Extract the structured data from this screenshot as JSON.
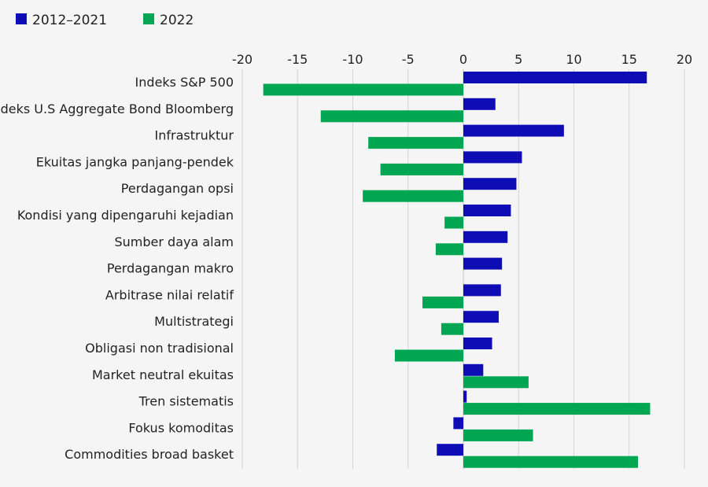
{
  "chart_data": {
    "type": "bar",
    "orientation": "horizontal",
    "categories": [
      "Indeks S&P 500",
      "Indeks U.S Aggregate Bond Bloomberg",
      "Infrastruktur",
      "Ekuitas jangka panjang-pendek",
      "Perdagangan opsi",
      "Kondisi yang dipengaruhi kejadian",
      "Sumber daya alam",
      "Perdagangan makro",
      "Arbitrase nilai relatif",
      "Multistrategi",
      "Obligasi non tradisional",
      "Market neutral ekuitas",
      "Tren sistematis",
      "Fokus komoditas",
      "Commodities broad basket"
    ],
    "series": [
      {
        "name": "2012–2021",
        "color": "#0d0cb5",
        "values": [
          16.6,
          2.9,
          9.1,
          5.3,
          4.8,
          4.3,
          4.0,
          3.5,
          3.4,
          3.2,
          2.6,
          1.8,
          0.3,
          -0.9,
          -2.4
        ]
      },
      {
        "name": "2022",
        "color": "#00a651",
        "values": [
          -18.1,
          -12.9,
          -8.6,
          -7.5,
          -9.1,
          -1.7,
          -2.5,
          0.0,
          -3.7,
          -2.0,
          -6.2,
          5.9,
          16.9,
          6.3,
          15.8
        ]
      }
    ],
    "xlim": [
      -20,
      20
    ],
    "xticks": [
      -20,
      -15,
      -10,
      -5,
      0,
      5,
      10,
      15,
      20
    ],
    "grid": true,
    "legend_position": "top-left",
    "title": "",
    "xlabel": "",
    "ylabel": ""
  }
}
